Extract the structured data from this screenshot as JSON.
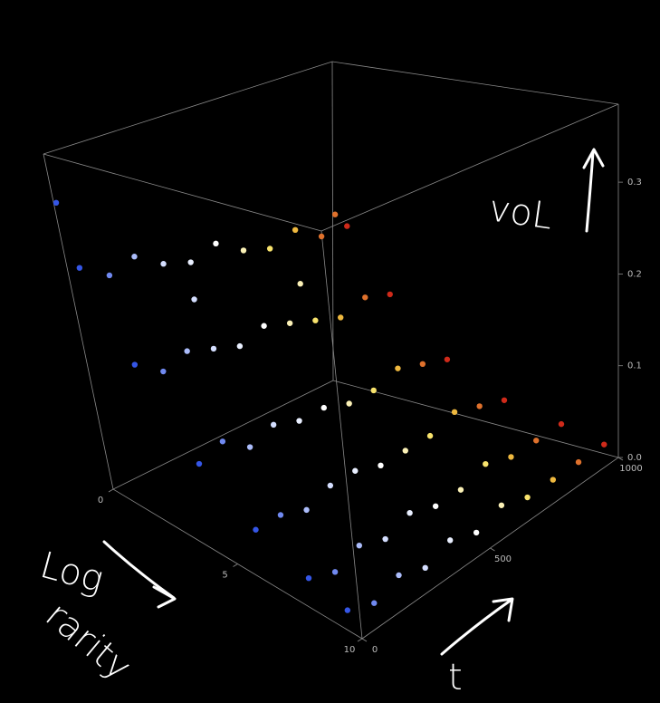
{
  "chart_data": {
    "type": "scatter3d",
    "xlabel": [
      "Log",
      "rarity"
    ],
    "ylabel": "t",
    "zlabel": "voL",
    "xlim": [
      0,
      10
    ],
    "ylim": [
      0,
      1000
    ],
    "zlim": [
      0,
      0.385
    ],
    "xticks": [
      0,
      5,
      10
    ],
    "yticks": [
      0,
      500,
      1000
    ],
    "zticks": [
      {
        "value": 0,
        "label": "0.0"
      },
      0.1,
      0.2,
      0.3
    ],
    "color_by": "y",
    "colormap": [
      "#3556e6",
      "#c9d6ff",
      "#ffffff",
      "#f6dc48",
      "#cf2a1a"
    ],
    "series": [
      {
        "x": [
          0.5,
          2,
          4,
          6,
          8,
          9.5,
          0.5,
          2,
          4,
          6,
          8,
          9.5,
          0.5,
          2,
          4,
          6,
          8,
          9.5,
          0.5,
          2,
          4,
          6,
          8,
          9.5,
          0.5,
          2,
          4,
          6,
          8,
          9.5,
          0.5,
          2,
          4,
          6,
          8,
          9.5,
          0.5,
          2,
          4,
          6,
          8,
          9.5,
          0.5,
          2,
          4,
          6,
          8,
          9.5,
          0.5,
          2,
          4,
          6,
          8,
          9.5,
          0.5,
          2,
          4,
          6,
          8,
          9.5,
          0.5,
          2,
          4,
          6,
          8,
          9.5,
          0.1,
          1.5,
          2.5,
          1
        ],
        "y": [
          0,
          0,
          0,
          0,
          0,
          0,
          100,
          100,
          100,
          100,
          100,
          100,
          200,
          200,
          200,
          200,
          200,
          200,
          300,
          300,
          300,
          300,
          300,
          300,
          400,
          400,
          400,
          400,
          400,
          400,
          500,
          500,
          500,
          500,
          500,
          500,
          600,
          600,
          600,
          600,
          600,
          600,
          700,
          700,
          700,
          700,
          700,
          700,
          800,
          800,
          800,
          800,
          800,
          800,
          900,
          900,
          900,
          900,
          900,
          900,
          1000,
          1000,
          1000,
          1000,
          1000,
          1000,
          0,
          300,
          600,
          900
        ],
        "z": [
          0.26,
          0.17,
          0.09,
          0.05,
          0.03,
          0.02,
          0.24,
          0.15,
          0.1,
          0.05,
          0.02,
          0.01,
          0.25,
          0.16,
          0.08,
          0.04,
          0.03,
          0.02,
          0.23,
          0.15,
          0.09,
          0.05,
          0.02,
          0.01,
          0.22,
          0.14,
          0.08,
          0.05,
          0.03,
          0.02,
          0.23,
          0.15,
          0.08,
          0.04,
          0.02,
          0.01,
          0.21,
          0.14,
          0.07,
          0.04,
          0.02,
          0.02,
          0.2,
          0.13,
          0.07,
          0.04,
          0.03,
          0.01,
          0.21,
          0.12,
          0.08,
          0.05,
          0.02,
          0.01,
          0.19,
          0.13,
          0.07,
          0.04,
          0.02,
          0.01,
          0.19,
          0.12,
          0.06,
          0.03,
          0.02,
          0.01,
          0.33,
          0.2,
          0.19,
          0.22
        ]
      }
    ]
  }
}
